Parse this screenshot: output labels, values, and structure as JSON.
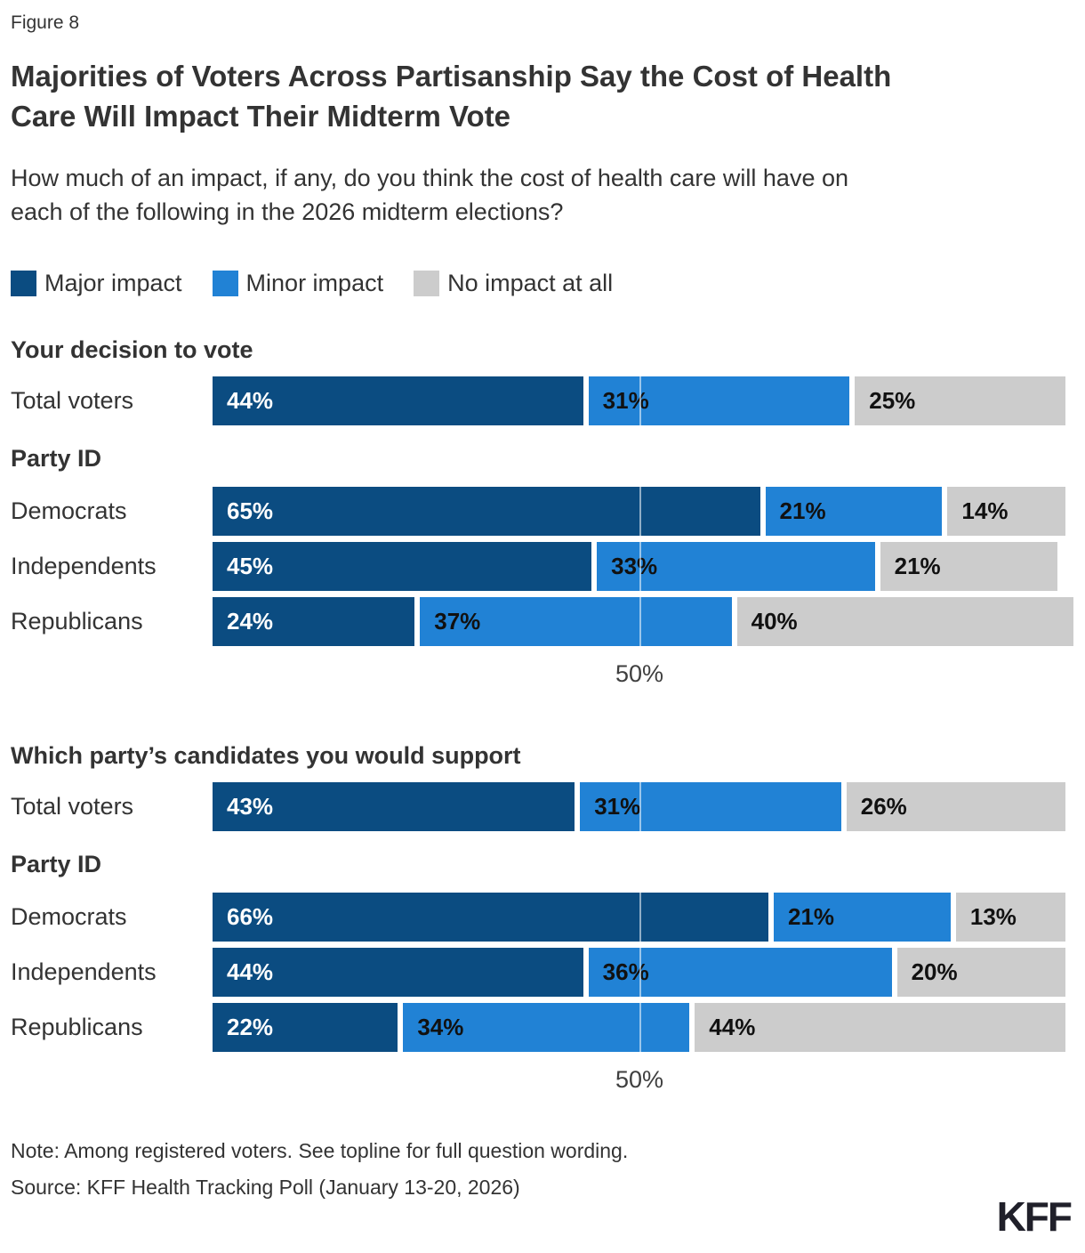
{
  "figure_label": "Figure 8",
  "title_lines": [
    "Majorities of Voters Across Partisanship Say the Cost of Health",
    "Care Will Impact Their Midterm Vote"
  ],
  "subtitle_lines": [
    "How much of an impact, if any, do you think the cost of health care will have on",
    "each of the following in the 2026 midterm elections?"
  ],
  "note": "Note: Among registered voters. See topline for full question wording.",
  "source": "Source: KFF Health Tracking Poll (January 13-20, 2026)",
  "logo_text": "KFF",
  "chart_data": {
    "type": "bar",
    "stacked": true,
    "orientation": "horizontal",
    "unit": "percent",
    "title": "Majorities of Voters Across Partisanship Say the Cost of Health Care Will Impact Their Midterm Vote",
    "series_names": [
      "Major impact",
      "Minor impact",
      "No impact at all"
    ],
    "series_colors": [
      "#0b4c81",
      "#2182d5",
      "#cccccc"
    ],
    "axis": {
      "tick_label": "50%",
      "tick_value": 50,
      "xmax": 100,
      "grid": true
    },
    "legend_position": "top",
    "sections": [
      {
        "heading": "Your decision to vote",
        "subheading": "Party ID",
        "rows": [
          {
            "label": "Total voters",
            "values": [
              44,
              31,
              25
            ]
          },
          {
            "label": "Democrats",
            "values": [
              65,
              21,
              14
            ]
          },
          {
            "label": "Independents",
            "values": [
              45,
              33,
              21
            ]
          },
          {
            "label": "Republicans",
            "values": [
              24,
              37,
              40
            ]
          }
        ]
      },
      {
        "heading": "Which party’s candidates you would support",
        "subheading": "Party ID",
        "rows": [
          {
            "label": "Total voters",
            "values": [
              43,
              31,
              26
            ]
          },
          {
            "label": "Democrats",
            "values": [
              66,
              21,
              13
            ]
          },
          {
            "label": "Independents",
            "values": [
              44,
              36,
              20
            ]
          },
          {
            "label": "Republicans",
            "values": [
              22,
              34,
              44
            ]
          }
        ]
      }
    ]
  }
}
